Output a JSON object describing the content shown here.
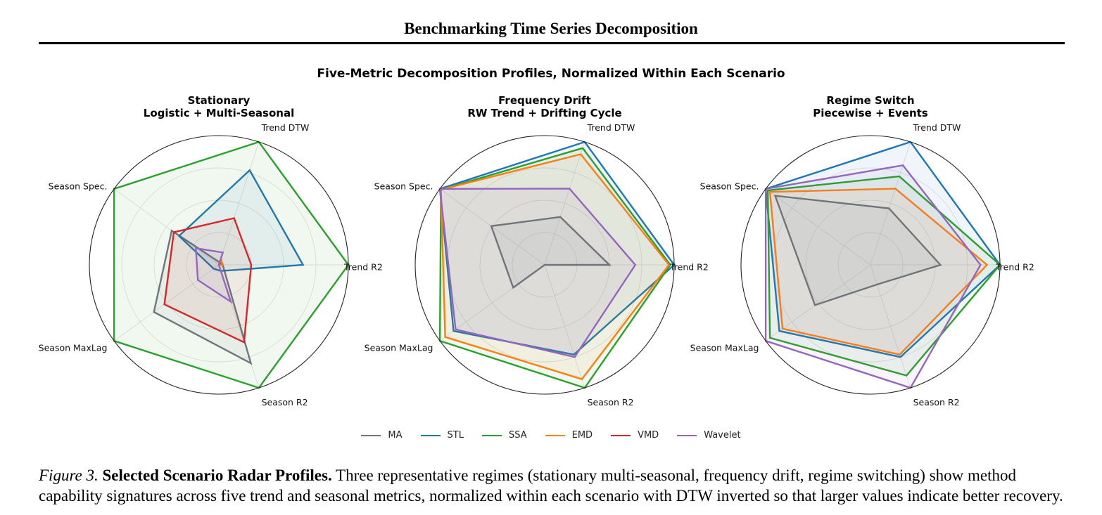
{
  "header": {
    "title": "Benchmarking Time Series Decomposition"
  },
  "figure": {
    "title": "Five-Metric Decomposition Profiles, Normalized Within Each Scenario",
    "caption": {
      "label": "Figure 3.",
      "bold": "Selected Scenario Radar Profiles.",
      "text": "Three representative regimes (stationary multi-seasonal, frequency drift, regime switching) show method capability signatures across five trend and seasonal metrics, normalized within each scenario with DTW inverted so that larger values indicate better recovery."
    }
  },
  "legend": [
    {
      "name": "MA",
      "color": "#6f7582"
    },
    {
      "name": "STL",
      "color": "#1f77b4"
    },
    {
      "name": "SSA",
      "color": "#2ca02c"
    },
    {
      "name": "EMD",
      "color": "#ff7f0e"
    },
    {
      "name": "VMD",
      "color": "#d62728"
    },
    {
      "name": "Wavelet",
      "color": "#9467bd"
    }
  ],
  "chart_data": [
    {
      "type": "radar",
      "title": "Stationary",
      "subtitle": "Logistic + Multi-Seasonal",
      "axes": [
        "Trend R2",
        "Trend DTW",
        "Season Spec.",
        "Season MaxLag",
        "Season R2"
      ],
      "range": [
        0,
        1
      ],
      "grid": true,
      "series": [
        {
          "name": "MA",
          "values": [
            0.03,
            0.02,
            0.45,
            0.62,
            0.8
          ]
        },
        {
          "name": "STL",
          "values": [
            0.65,
            0.77,
            0.38,
            0.05,
            0.05
          ]
        },
        {
          "name": "SSA",
          "values": [
            1.0,
            1.0,
            1.0,
            1.0,
            1.0
          ]
        },
        {
          "name": "EMD",
          "values": [
            0.03,
            0.05,
            0.0,
            0.0,
            0.0
          ]
        },
        {
          "name": "VMD",
          "values": [
            0.25,
            0.38,
            0.43,
            0.52,
            0.63
          ]
        },
        {
          "name": "Wavelet",
          "values": [
            0.0,
            0.1,
            0.22,
            0.2,
            0.3
          ]
        }
      ]
    },
    {
      "type": "radar",
      "title": "Frequency Drift",
      "subtitle": "RW Trend + Drifting Cycle",
      "axes": [
        "Trend R2",
        "Trend DTW",
        "Season Spec.",
        "Season MaxLag",
        "Season R2"
      ],
      "range": [
        0,
        1
      ],
      "grid": true,
      "series": [
        {
          "name": "MA",
          "values": [
            0.5,
            0.39,
            0.51,
            0.3,
            0.0
          ]
        },
        {
          "name": "STL",
          "values": [
            1.0,
            1.0,
            1.0,
            0.87,
            0.73
          ]
        },
        {
          "name": "SSA",
          "values": [
            0.97,
            0.95,
            0.99,
            1.0,
            1.0
          ]
        },
        {
          "name": "EMD",
          "values": [
            0.96,
            0.9,
            0.99,
            0.95,
            0.93
          ]
        },
        {
          "name": "Wavelet",
          "values": [
            0.7,
            0.62,
            1.0,
            0.85,
            0.75
          ]
        }
      ]
    },
    {
      "type": "radar",
      "title": "Regime Switch",
      "subtitle": "Piecewise + Events",
      "axes": [
        "Trend R2",
        "Trend DTW",
        "Season Spec.",
        "Season MaxLag",
        "Season R2"
      ],
      "range": [
        0,
        1
      ],
      "grid": true,
      "series": [
        {
          "name": "MA",
          "values": [
            0.54,
            0.46,
            0.91,
            0.53,
            0.16
          ]
        },
        {
          "name": "STL",
          "values": [
            1.0,
            1.0,
            1.0,
            0.87,
            0.75
          ]
        },
        {
          "name": "SSA",
          "values": [
            1.0,
            0.72,
            0.98,
            0.96,
            0.9
          ]
        },
        {
          "name": "EMD",
          "values": [
            0.9,
            0.62,
            0.96,
            0.84,
            0.73
          ]
        },
        {
          "name": "Wavelet",
          "values": [
            0.85,
            0.81,
            1.0,
            1.0,
            1.0
          ]
        }
      ]
    }
  ]
}
